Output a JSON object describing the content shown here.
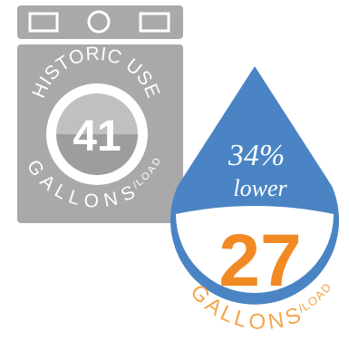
{
  "colors": {
    "washer_body": "#a9a9ab",
    "washer_dial_inner": "#9c9c9e",
    "drop_blue": "#4a84c4",
    "accent_orange": "#f28a23"
  },
  "washer": {
    "arc_label": "HISTORIC USE",
    "value": "41",
    "unit_label": "GALLONS",
    "unit_suffix": "/LOAD"
  },
  "drop": {
    "percent": "34%",
    "comparison": "lower",
    "value": "27",
    "unit_label": "GALLONS",
    "unit_suffix": "/LOAD"
  }
}
